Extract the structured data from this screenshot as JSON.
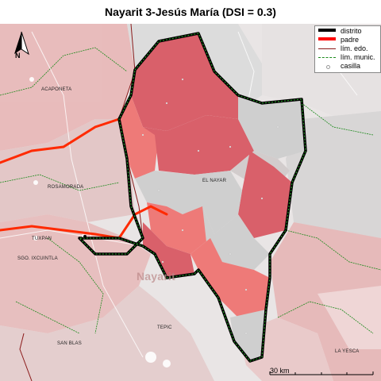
{
  "title": "Nayarit 3-Jesús María (DSI = 0.3)",
  "legend": {
    "items": [
      {
        "label": "distrito",
        "color": "#000000"
      },
      {
        "label": "padre",
        "color": "#ff0000"
      },
      {
        "label": "lím. edo.",
        "color": "#8b1a1a"
      },
      {
        "label": "lím. munic.",
        "color": "#1a8a1a"
      },
      {
        "label": "casilla",
        "color": "#ffffff"
      }
    ]
  },
  "places": {
    "acaponeta": "ACAPONETA",
    "rosamorada": "ROSAMORADA",
    "el_nayar": "EL NAYAR",
    "tuxpan": "TUXPAN",
    "santiago_ixcuintla": "SGO. IXCUINTLA",
    "san_blas": "SAN BLAS",
    "tepic": "TEPIC",
    "la_yesca": "LA YESCA",
    "nayarit": "Nayarit"
  },
  "scale_bar": {
    "label": "30 km"
  },
  "north_arrow": {
    "label": "N"
  },
  "colors": {
    "district_dark_red": "#d9606a",
    "district_light_red": "#ee7a78",
    "district_gray": "#cfcfcf",
    "background_pink": "#ecc3c3",
    "background_gray": "#d9d6d6",
    "state_outline": "#8b1a1a",
    "municipal_line": "#1a8a1a",
    "padre_line": "#ff2a00",
    "district_line": "#000000"
  }
}
